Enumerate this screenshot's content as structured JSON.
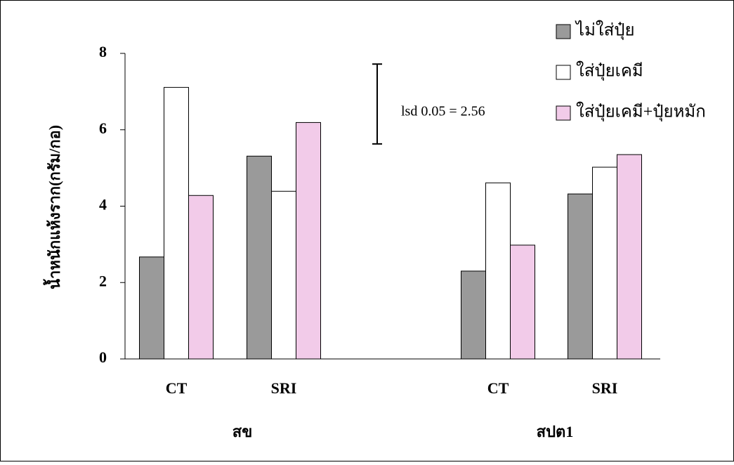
{
  "chart_data": {
    "type": "bar",
    "y_label": "น้ำหนักแห้งราก(กรัม/กอ)",
    "categories": [
      "CT",
      "SRI",
      "CT",
      "SRI"
    ],
    "groups": [
      "สข",
      "สปต1"
    ],
    "series": [
      {
        "name": "ไม่ใส่ปุ๋ย",
        "color": "#9a9a9a",
        "values": [
          2.67,
          5.31,
          2.3,
          4.32
        ]
      },
      {
        "name": "ใส่ปุ๋ยเคมี",
        "color": "#ffffff",
        "values": [
          7.11,
          4.39,
          4.61,
          5.02
        ]
      },
      {
        "name": "ใส่ปุ๋ยเคมี+ปุ๋ยหมัก",
        "color": "#f2cbe9",
        "values": [
          4.28,
          6.19,
          2.98,
          5.35
        ]
      }
    ],
    "annotation": "lsd 0.05 = 2.56",
    "lsd_bar": [
      5.63,
      7.72
    ],
    "ylim": [
      0,
      8
    ],
    "yticks": [
      0,
      2,
      4,
      6,
      8
    ],
    "grid": false
  }
}
